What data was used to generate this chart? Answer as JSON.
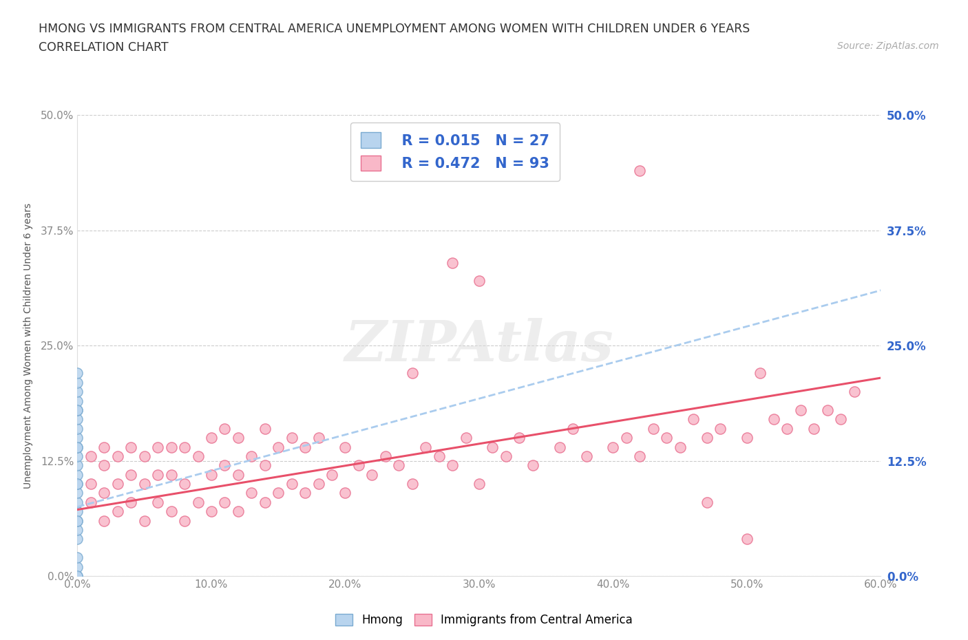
{
  "title_line1": "HMONG VS IMMIGRANTS FROM CENTRAL AMERICA UNEMPLOYMENT AMONG WOMEN WITH CHILDREN UNDER 6 YEARS",
  "title_line2": "CORRELATION CHART",
  "source": "Source: ZipAtlas.com",
  "ylabel": "Unemployment Among Women with Children Under 6 years",
  "xlim": [
    0.0,
    0.6
  ],
  "ylim": [
    0.0,
    0.5
  ],
  "yticks": [
    0.0,
    0.125,
    0.25,
    0.375,
    0.5
  ],
  "ytick_labels": [
    "0.0%",
    "12.5%",
    "25.0%",
    "37.5%",
    "50.0%"
  ],
  "xticks": [
    0.0,
    0.1,
    0.2,
    0.3,
    0.4,
    0.5,
    0.6
  ],
  "xtick_labels": [
    "0.0%",
    "10.0%",
    "20.0%",
    "30.0%",
    "40.0%",
    "50.0%",
    "60.0%"
  ],
  "hmong_face_color": "#b8d4ee",
  "hmong_edge_color": "#7aaad0",
  "ca_face_color": "#f9b8c8",
  "ca_edge_color": "#e87090",
  "trend_hmong_color": "#aaccee",
  "trend_ca_color": "#e8506a",
  "legend_R_hmong": "R = 0.015",
  "legend_N_hmong": "N = 27",
  "legend_R_ca": "R = 0.472",
  "legend_N_ca": "N = 93",
  "legend_label_hmong": "Hmong",
  "legend_label_ca": "Immigrants from Central America",
  "grid_color": "#cccccc",
  "background_color": "#ffffff",
  "title_color": "#333333",
  "source_color": "#aaaaaa",
  "axis_label_color": "#555555",
  "tick_label_color_left": "#888888",
  "tick_label_color_right": "#3366cc",
  "legend_text_color": "#3366cc",
  "watermark_text": "ZIPAtlas",
  "watermark_color": "#dddddd",
  "hmong_x": [
    0.0,
    0.0,
    0.0,
    0.0,
    0.0,
    0.0,
    0.0,
    0.0,
    0.0,
    0.0,
    0.0,
    0.0,
    0.0,
    0.0,
    0.0,
    0.0,
    0.0,
    0.0,
    0.0,
    0.0,
    0.0,
    0.0,
    0.0,
    0.0,
    0.0,
    0.0,
    0.0
  ],
  "hmong_y": [
    0.0,
    0.01,
    0.02,
    0.04,
    0.05,
    0.06,
    0.07,
    0.08,
    0.09,
    0.1,
    0.11,
    0.12,
    0.13,
    0.14,
    0.15,
    0.16,
    0.17,
    0.18,
    0.19,
    0.2,
    0.21,
    0.22,
    0.18,
    0.14,
    0.1,
    0.06,
    0.0
  ],
  "ca_x": [
    0.01,
    0.01,
    0.01,
    0.02,
    0.02,
    0.02,
    0.02,
    0.03,
    0.03,
    0.03,
    0.04,
    0.04,
    0.04,
    0.05,
    0.05,
    0.05,
    0.06,
    0.06,
    0.06,
    0.07,
    0.07,
    0.07,
    0.08,
    0.08,
    0.08,
    0.09,
    0.09,
    0.1,
    0.1,
    0.1,
    0.11,
    0.11,
    0.11,
    0.12,
    0.12,
    0.12,
    0.13,
    0.13,
    0.14,
    0.14,
    0.14,
    0.15,
    0.15,
    0.16,
    0.16,
    0.17,
    0.17,
    0.18,
    0.18,
    0.19,
    0.2,
    0.2,
    0.21,
    0.22,
    0.23,
    0.24,
    0.25,
    0.26,
    0.27,
    0.28,
    0.29,
    0.3,
    0.31,
    0.32,
    0.33,
    0.34,
    0.36,
    0.37,
    0.38,
    0.4,
    0.41,
    0.42,
    0.43,
    0.44,
    0.45,
    0.46,
    0.47,
    0.48,
    0.5,
    0.52,
    0.53,
    0.54,
    0.55,
    0.56,
    0.57,
    0.58,
    0.28,
    0.3,
    0.42,
    0.47,
    0.5,
    0.51,
    0.25
  ],
  "ca_y": [
    0.08,
    0.1,
    0.13,
    0.06,
    0.09,
    0.12,
    0.14,
    0.07,
    0.1,
    0.13,
    0.08,
    0.11,
    0.14,
    0.06,
    0.1,
    0.13,
    0.08,
    0.11,
    0.14,
    0.07,
    0.11,
    0.14,
    0.06,
    0.1,
    0.14,
    0.08,
    0.13,
    0.07,
    0.11,
    0.15,
    0.08,
    0.12,
    0.16,
    0.07,
    0.11,
    0.15,
    0.09,
    0.13,
    0.08,
    0.12,
    0.16,
    0.09,
    0.14,
    0.1,
    0.15,
    0.09,
    0.14,
    0.1,
    0.15,
    0.11,
    0.09,
    0.14,
    0.12,
    0.11,
    0.13,
    0.12,
    0.1,
    0.14,
    0.13,
    0.12,
    0.15,
    0.1,
    0.14,
    0.13,
    0.15,
    0.12,
    0.14,
    0.16,
    0.13,
    0.14,
    0.15,
    0.13,
    0.16,
    0.15,
    0.14,
    0.17,
    0.15,
    0.16,
    0.15,
    0.17,
    0.16,
    0.18,
    0.16,
    0.18,
    0.17,
    0.2,
    0.34,
    0.32,
    0.44,
    0.08,
    0.04,
    0.22,
    0.22
  ],
  "trend_hmong_x0": 0.0,
  "trend_hmong_x1": 0.6,
  "trend_hmong_y0": 0.075,
  "trend_hmong_y1": 0.31,
  "trend_ca_x0": 0.0,
  "trend_ca_x1": 0.6,
  "trend_ca_y0": 0.072,
  "trend_ca_y1": 0.215
}
